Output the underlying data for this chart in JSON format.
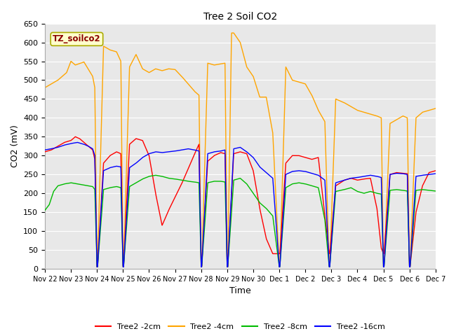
{
  "title": "Tree 2 Soil CO2",
  "ylabel": "CO2 (mV)",
  "xlabel": "Time",
  "ylim": [
    0,
    650
  ],
  "annotation_text": "TZ_soilco2",
  "legend_labels": [
    "Tree2 -2cm",
    "Tree2 -4cm",
    "Tree2 -8cm",
    "Tree2 -16cm"
  ],
  "legend_colors": [
    "#ff0000",
    "#ffa500",
    "#00bb00",
    "#0000ff"
  ],
  "plot_bg_color": "#e8e8e8",
  "fig_bg_color": "#ffffff",
  "grid_color": "#ffffff",
  "tick_labels": [
    "Nov 22",
    "Nov 23",
    "Nov 24",
    "Nov 25",
    "Nov 26",
    "Nov 27",
    "Nov 28",
    "Nov 29",
    "Nov 30",
    "Dec 1",
    "Dec 2",
    "Dec 3",
    "Dec 4",
    "Dec 5",
    "Dec 6",
    "Dec 7"
  ],
  "yticks": [
    0,
    50,
    100,
    150,
    200,
    250,
    300,
    350,
    400,
    450,
    500,
    550,
    600,
    650
  ]
}
